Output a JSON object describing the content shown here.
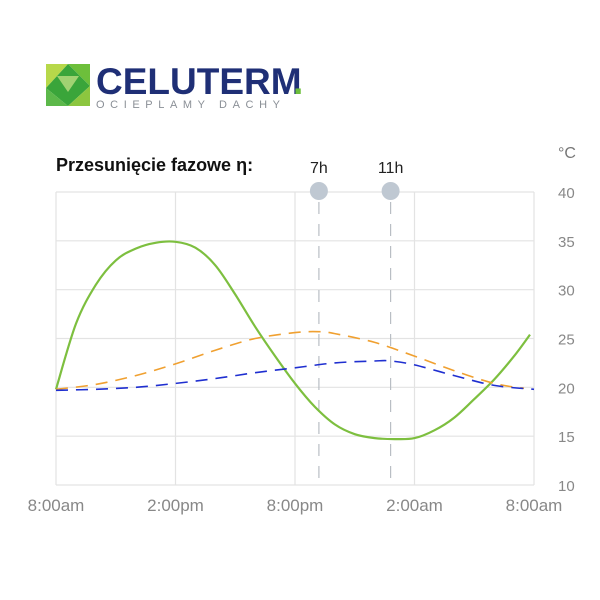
{
  "brand": {
    "name": "CELUTERM",
    "dot": ".",
    "tagline": "OCIEPLAMY DACHY",
    "colors": {
      "navy": "#1f2f76",
      "green": "#6dbf3b",
      "light_green": "#b7d84a",
      "gray_text": "#9aa0a6"
    }
  },
  "chart_data": {
    "type": "line",
    "title": "Przesunięcie fazowe η:",
    "unit": "°C",
    "x_ticks": [
      "8:00am",
      "2:00pm",
      "8:00pm",
      "2:00am",
      "8:00am"
    ],
    "x_hours": [
      0,
      6,
      12,
      18,
      24
    ],
    "xlim": [
      0,
      24
    ],
    "ylim": [
      10,
      40
    ],
    "y_ticks": [
      10,
      15,
      20,
      25,
      30,
      35,
      40
    ],
    "grid": true,
    "phase_markers": [
      {
        "label": "7h",
        "x": 13.2
      },
      {
        "label": "11h",
        "x": 16.8
      }
    ],
    "series": [
      {
        "style": "solid",
        "color": "#7dbf3f",
        "x": [
          0,
          1,
          2,
          3,
          4,
          5,
          6,
          7,
          8,
          9,
          10,
          11,
          12,
          13,
          14,
          15,
          16,
          17,
          18,
          19,
          20,
          21,
          22,
          23,
          23.8
        ],
        "y": [
          19.8,
          26.5,
          30.5,
          33.0,
          34.2,
          34.8,
          34.9,
          34.3,
          32.5,
          29.5,
          26.2,
          23.2,
          20.4,
          18.0,
          16.2,
          15.2,
          14.8,
          14.7,
          14.8,
          15.6,
          16.9,
          18.8,
          20.8,
          23.2,
          25.4
        ]
      },
      {
        "style": "dashed",
        "color": "#f0a030",
        "x": [
          0,
          2,
          4,
          6,
          8,
          10,
          12,
          13.2,
          14,
          16,
          18,
          20,
          22,
          23.5
        ],
        "y": [
          19.8,
          20.3,
          21.2,
          22.4,
          23.8,
          25.0,
          25.6,
          25.7,
          25.5,
          24.6,
          23.2,
          21.7,
          20.4,
          19.9
        ]
      },
      {
        "style": "dashed",
        "color": "#1f2fd0",
        "x": [
          0,
          2,
          4,
          6,
          8,
          10,
          12,
          14,
          16,
          16.8,
          18,
          20,
          22,
          24
        ],
        "y": [
          19.7,
          19.8,
          20.0,
          20.4,
          20.9,
          21.5,
          22.0,
          22.5,
          22.7,
          22.7,
          22.3,
          21.2,
          20.2,
          19.8
        ]
      }
    ]
  }
}
